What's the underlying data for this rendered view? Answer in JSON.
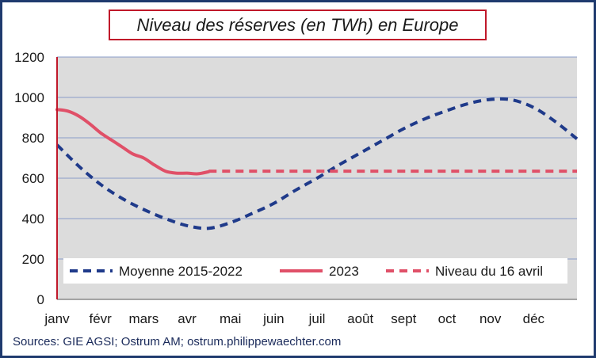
{
  "chart_data": {
    "type": "line",
    "title": "Niveau des réserves (en TWh) en Europe",
    "source": "Sources: GIE AGSI; Ostrum AM; ostrum.philippewaechter.com",
    "categories": [
      "janv",
      "févr",
      "mars",
      "avr",
      "mai",
      "juin",
      "juil",
      "août",
      "sept",
      "oct",
      "nov",
      "déc"
    ],
    "yticks": [
      "0",
      "200",
      "400",
      "600",
      "800",
      "1000",
      "1200"
    ],
    "ylim": [
      0,
      1200
    ],
    "xlim": [
      0,
      12
    ],
    "grid": true,
    "legend_position": "bottom",
    "series": [
      {
        "name": "Moyenne 2015-2022",
        "color": "#1f3a8a",
        "style": "dashed",
        "x": [
          0,
          0.5,
          1,
          1.5,
          2,
          2.5,
          3,
          3.5,
          4,
          4.5,
          5,
          5.5,
          6,
          6.5,
          7,
          7.5,
          8,
          8.5,
          9,
          9.5,
          10,
          10.5,
          11,
          11.5,
          12
        ],
        "values": [
          765,
          660,
          570,
          500,
          445,
          400,
          365,
          352,
          380,
          425,
          475,
          540,
          600,
          665,
          725,
          785,
          845,
          895,
          935,
          970,
          990,
          988,
          950,
          880,
          795
        ]
      },
      {
        "name": "2023",
        "color": "#e05068",
        "style": "solid",
        "x": [
          0,
          0.25,
          0.5,
          0.75,
          1.0,
          1.25,
          1.5,
          1.75,
          2.0,
          2.25,
          2.5,
          2.75,
          3.0,
          3.25,
          3.5
        ],
        "values": [
          940,
          932,
          908,
          870,
          825,
          790,
          755,
          720,
          700,
          665,
          635,
          625,
          625,
          622,
          632
        ]
      },
      {
        "name": "Niveau du 16 avril",
        "color": "#e05068",
        "style": "dashed",
        "x": [
          3.5,
          12
        ],
        "values": [
          635,
          635
        ]
      }
    ]
  }
}
